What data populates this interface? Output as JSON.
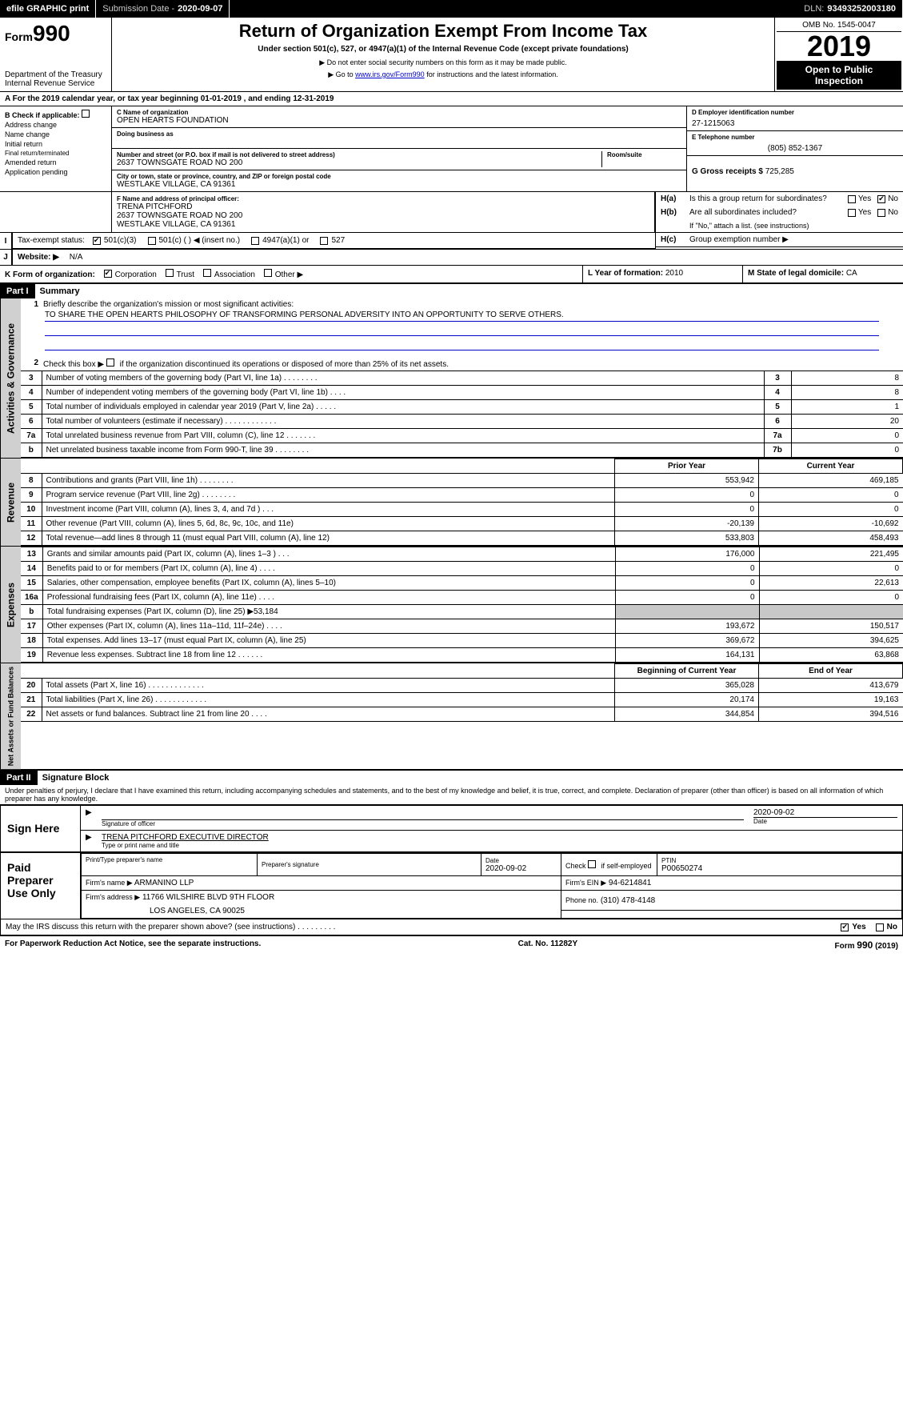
{
  "top_bar": {
    "efile": "efile GRAPHIC print",
    "submission_label": "Submission Date -",
    "submission_date": "2020-09-07",
    "dln_label": "DLN:",
    "dln": "93493252003180"
  },
  "header": {
    "form_word": "Form",
    "form_num": "990",
    "dept1": "Department of the Treasury",
    "dept2": "Internal Revenue Service",
    "title": "Return of Organization Exempt From Income Tax",
    "subtitle": "Under section 501(c), 527, or 4947(a)(1) of the Internal Revenue Code (except private foundations)",
    "note1": "▶ Do not enter social security numbers on this form as it may be made public.",
    "note2_pre": "▶ Go to ",
    "note2_link": "www.irs.gov/Form990",
    "note2_post": " for instructions and the latest information.",
    "omb": "OMB No. 1545-0047",
    "year": "2019",
    "open1": "Open to Public",
    "open2": "Inspection"
  },
  "section_a": "A   For the 2019 calendar year, or tax year beginning 01-01-2019        , and ending 12-31-2019",
  "col_b": {
    "title": "B Check if applicable:",
    "items": [
      "Address change",
      "Name change",
      "Initial return",
      "Final return/terminated",
      "Amended return",
      "Application pending"
    ]
  },
  "col_c": {
    "name_hint": "C Name of organization",
    "name": "OPEN HEARTS FOUNDATION",
    "dba_hint": "Doing business as",
    "addr_hint": "Number and street (or P.O. box if mail is not delivered to street address)",
    "room_hint": "Room/suite",
    "addr": "2637 TOWNSGATE ROAD NO 200",
    "city_hint": "City or town, state or province, country, and ZIP or foreign postal code",
    "city": "WESTLAKE VILLAGE, CA  91361",
    "f_hint": "F Name and address of principal officer:",
    "f_name": "TRENA PITCHFORD",
    "f_addr1": "2637 TOWNSGATE ROAD NO 200",
    "f_addr2": "WESTLAKE VILLAGE, CA  91361"
  },
  "col_d": {
    "ein_label": "D Employer identification number",
    "ein": "27-1215063",
    "phone_label": "E Telephone number",
    "phone": "(805) 852-1367",
    "gross_label": "G Gross receipts $",
    "gross": "725,285"
  },
  "h": {
    "ha_label": "H(a)",
    "ha_text": "Is this a group return for subordinates?",
    "hb_label": "H(b)",
    "hb_text": "Are all subordinates included?",
    "hb_note": "If \"No,\" attach a list. (see instructions)",
    "hc_label": "H(c)",
    "hc_text": "Group exemption number ▶",
    "yes": "Yes",
    "no": "No"
  },
  "tax_status": {
    "label": "Tax-exempt status:",
    "opts": [
      "501(c)(3)",
      "501(c) (   ) ◀ (insert no.)",
      "4947(a)(1) or",
      "527"
    ]
  },
  "website": {
    "label": "Website: ▶",
    "value": "N/A"
  },
  "k_org": {
    "label": "K Form of organization:",
    "opts": [
      "Corporation",
      "Trust",
      "Association",
      "Other ▶"
    ]
  },
  "l_year": {
    "label": "L Year of formation:",
    "value": "2010"
  },
  "m_state": {
    "label": "M State of legal domicile:",
    "value": "CA"
  },
  "part1": {
    "header": "Part I",
    "title": "Summary",
    "q1": "Briefly describe the organization's mission or most significant activities:",
    "mission": "TO SHARE THE OPEN HEARTS PHILOSOPHY OF TRANSFORMING PERSONAL ADVERSITY INTO AN OPPORTUNITY TO SERVE OTHERS.",
    "q2": "Check this box ▶        if the organization discontinued its operations or disposed of more than 25% of its net assets.",
    "vtabs": [
      "Activities & Governance",
      "Revenue",
      "Expenses",
      "Net Assets or Fund Balances"
    ],
    "rows_gov": [
      {
        "n": "3",
        "t": "Number of voting members of the governing body (Part VI, line 1a)  .     .     .     .     .     .     .     .",
        "box": "3",
        "v": "8"
      },
      {
        "n": "4",
        "t": "Number of independent voting members of the governing body (Part VI, line 1b)  .     .     .     .",
        "box": "4",
        "v": "8"
      },
      {
        "n": "5",
        "t": "Total number of individuals employed in calendar year 2019 (Part V, line 2a)  .     .     .     .     .",
        "box": "5",
        "v": "1"
      },
      {
        "n": "6",
        "t": "Total number of volunteers (estimate if necessary)   .     .     .     .     .     .     .     .     .     .     .     .",
        "box": "6",
        "v": "20"
      },
      {
        "n": "7a",
        "t": "Total unrelated business revenue from Part VIII, column (C), line 12   .     .     .     .     .     .     .",
        "box": "7a",
        "v": "0"
      },
      {
        "n": "b",
        "t": "Net unrelated business taxable income from Form 990-T, line 39   .    .     .     .     .     .     .     .",
        "box": "7b",
        "v": "0"
      }
    ],
    "col_headers": [
      "Prior Year",
      "Current Year"
    ],
    "rows_rev": [
      {
        "n": "8",
        "t": "Contributions and grants (Part VIII, line 1h)   .     .     .     .     .     .     .     .",
        "py": "553,942",
        "cy": "469,185"
      },
      {
        "n": "9",
        "t": "Program service revenue (Part VIII, line 2g)   .     .     .     .     .     .     .     .",
        "py": "0",
        "cy": "0"
      },
      {
        "n": "10",
        "t": "Investment income (Part VIII, column (A), lines 3, 4, and 7d )   .     .     .",
        "py": "0",
        "cy": "0"
      },
      {
        "n": "11",
        "t": "Other revenue (Part VIII, column (A), lines 5, 6d, 8c, 9c, 10c, and 11e)",
        "py": "-20,139",
        "cy": "-10,692"
      },
      {
        "n": "12",
        "t": "Total revenue—add lines 8 through 11 (must equal Part VIII, column (A), line 12)",
        "py": "533,803",
        "cy": "458,493"
      }
    ],
    "rows_exp": [
      {
        "n": "13",
        "t": "Grants and similar amounts paid (Part IX, column (A), lines 1–3 )  .     .     .",
        "py": "176,000",
        "cy": "221,495"
      },
      {
        "n": "14",
        "t": "Benefits paid to or for members (Part IX, column (A), line 4)  .     .     .     .",
        "py": "0",
        "cy": "0"
      },
      {
        "n": "15",
        "t": "Salaries, other compensation, employee benefits (Part IX, column (A), lines 5–10)",
        "py": "0",
        "cy": "22,613"
      },
      {
        "n": "16a",
        "t": "Professional fundraising fees (Part IX, column (A), line 11e)  .     .     .     .",
        "py": "0",
        "cy": "0"
      },
      {
        "n": "b",
        "t": "Total fundraising expenses (Part IX, column (D), line 25) ▶53,184",
        "py": "shade",
        "cy": "shade"
      },
      {
        "n": "17",
        "t": "Other expenses (Part IX, column (A), lines 11a–11d, 11f–24e)  .     .     .     .",
        "py": "193,672",
        "cy": "150,517"
      },
      {
        "n": "18",
        "t": "Total expenses. Add lines 13–17 (must equal Part IX, column (A), line 25)",
        "py": "369,672",
        "cy": "394,625"
      },
      {
        "n": "19",
        "t": "Revenue less expenses. Subtract line 18 from line 12  .     .     .     .     .     .",
        "py": "164,131",
        "cy": "63,868"
      }
    ],
    "col_headers2": [
      "Beginning of Current Year",
      "End of Year"
    ],
    "rows_net": [
      {
        "n": "20",
        "t": "Total assets (Part X, line 16)  .     .     .     .     .     .     .     .     .     .     .     .     .",
        "py": "365,028",
        "cy": "413,679"
      },
      {
        "n": "21",
        "t": "Total liabilities (Part X, line 26)  .     .     .     .     .     .     .     .     .     .     .     .",
        "py": "20,174",
        "cy": "19,163"
      },
      {
        "n": "22",
        "t": "Net assets or fund balances. Subtract line 21 from line 20  .     .     .     .",
        "py": "344,854",
        "cy": "394,516"
      }
    ]
  },
  "part2": {
    "header": "Part II",
    "title": "Signature Block",
    "perjury": "Under penalties of perjury, I declare that I have examined this return, including accompanying schedules and statements, and to the best of my knowledge and belief, it is true, correct, and complete. Declaration of preparer (other than officer) is based on all information of which preparer has any knowledge."
  },
  "sign": {
    "label": "Sign Here",
    "sig_officer": "Signature of officer",
    "date": "2020-09-02",
    "date_label": "Date",
    "name": "TRENA PITCHFORD  EXECUTIVE DIRECTOR",
    "name_hint": "Type or print name and title"
  },
  "preparer": {
    "label1": "Paid",
    "label2": "Preparer",
    "label3": "Use Only",
    "h1": "Print/Type preparer's name",
    "h2": "Preparer's signature",
    "h3_label": "Date",
    "h3": "2020-09-02",
    "h4_label": "Check         if self-employed",
    "h5_label": "PTIN",
    "h5": "P00650274",
    "firm_name_label": "Firm's name      ▶",
    "firm_name": "ARMANINO LLP",
    "firm_ein_label": "Firm's EIN ▶",
    "firm_ein": "94-6214841",
    "firm_addr_label": "Firm's address ▶",
    "firm_addr1": "11766 WILSHIRE BLVD 9TH FLOOR",
    "firm_addr2": "LOS ANGELES, CA  90025",
    "firm_phone_label": "Phone no.",
    "firm_phone": "(310) 478-4148"
  },
  "discuss": {
    "text": "May the IRS discuss this return with the preparer shown above? (see instructions)   .     .     .     .     .     .     .     .     .",
    "yes": "Yes",
    "no": "No"
  },
  "footer": {
    "left": "For Paperwork Reduction Act Notice, see the separate instructions.",
    "mid": "Cat. No. 11282Y",
    "right": "Form 990 (2019)"
  }
}
